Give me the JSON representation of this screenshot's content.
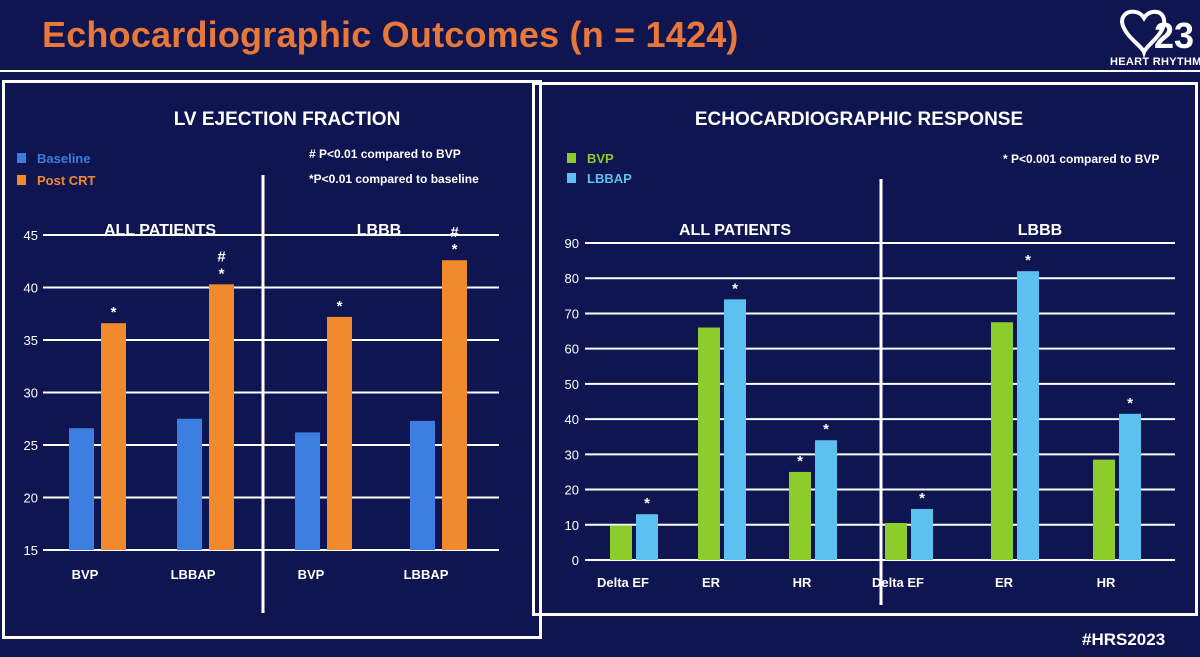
{
  "slide": {
    "title": "Echocardiographic Outcomes (n = 1424)",
    "hashtag": "#HRS2023",
    "logo_text": "HEART RHYTHM",
    "logo_mark": "23"
  },
  "colors": {
    "background": "#0f1550",
    "title": "#e8773a",
    "baseline": "#3b7ee0",
    "post_crt": "#f08a2c",
    "bvp": "#8ccd2c",
    "lbbap": "#5cc0f0",
    "legend_baseline_text": "#3b7ee0",
    "legend_post_text": "#f08a2c",
    "legend_bvp_text": "#8ccd2c",
    "legend_lbbap_text": "#5cc0f0"
  },
  "chart_data": [
    {
      "type": "bar",
      "title": "LV EJECTION FRACTION",
      "legend": [
        "Baseline",
        "Post CRT"
      ],
      "footnotes": [
        "# P<0.01 compared to BVP",
        "*P<0.01 compared to baseline"
      ],
      "ylim": [
        15,
        45
      ],
      "yticks": [
        "15",
        "20",
        "25",
        "30",
        "35",
        "40",
        "45"
      ],
      "grid": true,
      "panels": [
        {
          "subtitle": "ALL PATIENTS",
          "categories": [
            "BVP",
            "LBBAP"
          ],
          "series": [
            {
              "name": "Baseline",
              "values": [
                26.6,
                27.5
              ]
            },
            {
              "name": "Post CRT",
              "values": [
                36.6,
                40.3
              ]
            }
          ],
          "annotations": [
            {
              "category": 0,
              "series": 1,
              "marks": [
                "*"
              ]
            },
            {
              "category": 1,
              "series": 1,
              "marks": [
                "#",
                "*"
              ]
            }
          ]
        },
        {
          "subtitle": "LBBB",
          "categories": [
            "BVP",
            "LBBAP"
          ],
          "series": [
            {
              "name": "Baseline",
              "values": [
                26.2,
                27.3
              ]
            },
            {
              "name": "Post CRT",
              "values": [
                37.2,
                42.6
              ]
            }
          ],
          "annotations": [
            {
              "category": 0,
              "series": 1,
              "marks": [
                "*"
              ]
            },
            {
              "category": 1,
              "series": 1,
              "marks": [
                "#",
                "*"
              ]
            }
          ]
        }
      ]
    },
    {
      "type": "bar",
      "title": "ECHOCARDIOGRAPHIC RESPONSE",
      "legend": [
        "BVP",
        "LBBAP"
      ],
      "footnotes": [
        "* P<0.001 compared to BVP"
      ],
      "ylim": [
        0,
        90
      ],
      "yticks": [
        "0",
        "10",
        "20",
        "30",
        "40",
        "50",
        "60",
        "70",
        "80",
        "90"
      ],
      "grid": true,
      "panels": [
        {
          "subtitle": "ALL PATIENTS",
          "categories": [
            "Delta EF",
            "ER",
            "HR"
          ],
          "series": [
            {
              "name": "BVP",
              "values": [
                9.8,
                66,
                25
              ]
            },
            {
              "name": "LBBAP",
              "values": [
                13,
                74,
                34
              ]
            }
          ],
          "annotations": [
            {
              "category": 0,
              "series": 1,
              "marks": [
                "*"
              ]
            },
            {
              "category": 1,
              "series": 1,
              "marks": [
                "*"
              ]
            },
            {
              "category": 2,
              "series": 0,
              "marks": [
                "*"
              ]
            },
            {
              "category": 2,
              "series": 1,
              "marks": [
                "*"
              ]
            }
          ]
        },
        {
          "subtitle": "LBBB",
          "categories": [
            "Delta EF",
            "ER",
            "HR"
          ],
          "series": [
            {
              "name": "BVP",
              "values": [
                10.5,
                67.5,
                28.5
              ]
            },
            {
              "name": "LBBAP",
              "values": [
                14.5,
                82,
                41.5
              ]
            }
          ],
          "annotations": [
            {
              "category": 0,
              "series": 1,
              "marks": [
                "*"
              ]
            },
            {
              "category": 1,
              "series": 1,
              "marks": [
                "*"
              ]
            },
            {
              "category": 2,
              "series": 1,
              "marks": [
                "*"
              ]
            }
          ]
        }
      ]
    }
  ]
}
